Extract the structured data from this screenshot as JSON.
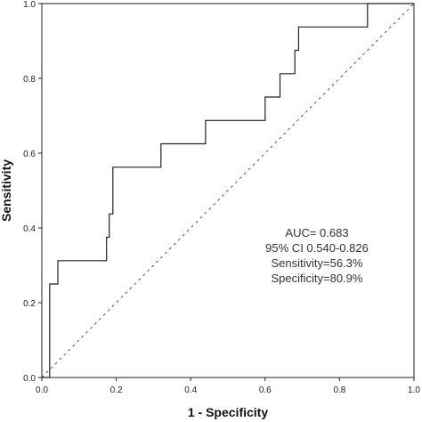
{
  "chart_data": {
    "type": "line",
    "xlabel": "1 - Specificity",
    "ylabel": "Sensitivity",
    "xlim": [
      0,
      1
    ],
    "ylim": [
      0,
      1
    ],
    "xticks": [
      "0.0",
      "0.2",
      "0.4",
      "0.6",
      "0.8",
      "1.0"
    ],
    "yticks": [
      "0.0",
      "0.2",
      "0.4",
      "0.6",
      "0.8",
      "1.0"
    ],
    "grid": false,
    "reference_line": {
      "style": "dotted",
      "from": [
        0,
        0
      ],
      "to": [
        1,
        1
      ]
    },
    "series": [
      {
        "x": [
          0.0,
          0.021,
          0.021,
          0.043,
          0.043,
          0.174,
          0.174,
          0.181,
          0.181,
          0.191,
          0.191,
          0.32,
          0.32,
          0.44,
          0.44,
          0.6,
          0.6,
          0.64,
          0.64,
          0.68,
          0.68,
          0.69,
          0.69,
          0.875,
          0.875,
          1.0
        ],
        "y": [
          0.0,
          0.0,
          0.25,
          0.25,
          0.3125,
          0.3125,
          0.375,
          0.375,
          0.4375,
          0.4375,
          0.5625,
          0.5625,
          0.625,
          0.625,
          0.6875,
          0.6875,
          0.75,
          0.75,
          0.8125,
          0.8125,
          0.875,
          0.875,
          0.9375,
          0.9375,
          1.0,
          1.0
        ]
      }
    ],
    "annotations": [
      "AUC= 0.683",
      "95% CI 0.540-0.826",
      "Sensitivity=56.3%",
      "Specificity=80.9%"
    ]
  }
}
